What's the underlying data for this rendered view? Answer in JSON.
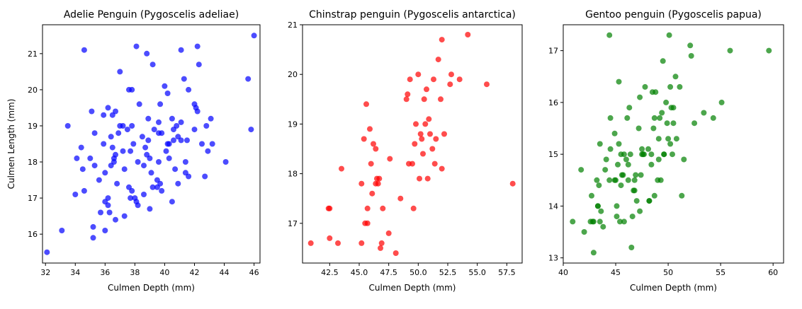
{
  "chart_data": [
    {
      "type": "scatter",
      "title": "Adelie Penguin (Pygoscelis adeliae)",
      "xlabel": "Culmen Depth (mm)",
      "ylabel": "Culmen Length (mm)",
      "xlim": [
        31.8,
        46.4
      ],
      "ylim": [
        15.2,
        21.8
      ],
      "xticks": [
        32,
        34,
        36,
        38,
        40,
        42,
        44,
        46
      ],
      "yticks": [
        16,
        17,
        18,
        19,
        20,
        21
      ],
      "color": "#0000ff",
      "grid": false,
      "series": [
        {
          "x": [
            32.1,
            33.1,
            33.5,
            34.0,
            34.1,
            34.4,
            34.6,
            34.6,
            35.1,
            35.2,
            35.2,
            35.3,
            35.6,
            35.7,
            35.9,
            36.0,
            36.0,
            36.2,
            36.2,
            36.3,
            36.4,
            36.5,
            36.6,
            36.7,
            36.7,
            36.8,
            37.0,
            37.2,
            37.3,
            37.5,
            37.6,
            37.7,
            37.8,
            37.8,
            37.9,
            38.1,
            38.2,
            38.3,
            38.5,
            38.6,
            38.6,
            38.8,
            38.9,
            39.0,
            39.0,
            39.2,
            39.3,
            39.5,
            39.6,
            39.6,
            39.7,
            39.8,
            39.8,
            40.0,
            40.1,
            40.2,
            40.3,
            40.5,
            40.6,
            40.7,
            40.8,
            40.9,
            41.1,
            41.1,
            41.3,
            41.4,
            41.5,
            41.6,
            42.0,
            42.1,
            42.2,
            42.3,
            42.5,
            42.7,
            42.8,
            42.9,
            43.1,
            43.2,
            44.1,
            45.6,
            45.8,
            46.0,
            37.7,
            39.1,
            37.2,
            38.8,
            36.4,
            35.9,
            40.2,
            36.6,
            38.1,
            41.1,
            37.6,
            40.6,
            36.5,
            39.7,
            37.3,
            35.3,
            42.0,
            36.9,
            39.5,
            38.9,
            34.5,
            40.3,
            36.2,
            38.7,
            41.4,
            37.0,
            35.0,
            39.2,
            40.9,
            36.0,
            42.2,
            38.2,
            37.8,
            39.6,
            41.6,
            36.7,
            38.0,
            40.5
          ],
          "y": [
            15.5,
            16.1,
            19.0,
            17.1,
            18.1,
            18.4,
            21.1,
            17.2,
            19.4,
            15.9,
            16.2,
            18.8,
            17.5,
            16.6,
            18.5,
            17.7,
            16.1,
            19.5,
            17.0,
            16.6,
            18.7,
            19.3,
            18.1,
            19.4,
            16.4,
            17.4,
            20.5,
            18.3,
            16.5,
            18.9,
            20.0,
            17.0,
            19.0,
            20.0,
            18.5,
            21.2,
            16.8,
            19.6,
            18.7,
            17.1,
            17.9,
            21.0,
            18.6,
            18.1,
            16.7,
            20.7,
            18.9,
            17.5,
            18.0,
            19.1,
            17.4,
            18.8,
            17.2,
            20.1,
            18.3,
            19.9,
            18.5,
            16.9,
            18.9,
            17.8,
            19.0,
            17.4,
            21.1,
            18.6,
            20.3,
            18.0,
            18.6,
            20.0,
            18.9,
            19.5,
            21.2,
            20.7,
            18.5,
            17.6,
            19.0,
            18.3,
            19.2,
            18.5,
            18.0,
            20.3,
            18.9,
            21.5,
            18.3,
            17.7,
            19.0,
            18.2,
            17.9,
            19.3,
            18.5,
            18.0,
            16.9,
            19.1,
            17.3,
            18.6,
            18.4,
            19.6,
            17.8,
            17.9,
            19.6,
            18.8,
            17.3,
            19.2,
            17.8,
            18.1,
            16.8,
            18.4,
            17.7,
            19.0,
            18.1,
            17.3,
            18.7,
            16.9,
            19.4,
            18.0,
            17.2,
            18.8,
            17.6,
            18.2,
            17.0,
            19.2
          ]
        }
      ]
    },
    {
      "type": "scatter",
      "title": "Chinstrap penguin (Pygoscelis antarctica)",
      "xlabel": "Culmen Depth (mm)",
      "ylabel": "",
      "xlim": [
        40.2,
        58.8
      ],
      "ylim": [
        16.2,
        21.0
      ],
      "xticks": [
        42.5,
        45.0,
        47.5,
        50.0,
        52.5,
        55.0,
        57.5
      ],
      "xtick_labels": [
        "42.5",
        "45.0",
        "47.5",
        "50.0",
        "52.5",
        "55.0",
        "57.5"
      ],
      "yticks": [
        17,
        18,
        19,
        20,
        21
      ],
      "color": "#ff0000",
      "grid": false,
      "series": [
        {
          "x": [
            40.9,
            42.4,
            42.5,
            42.5,
            43.2,
            43.5,
            45.2,
            45.2,
            45.4,
            45.5,
            45.6,
            45.7,
            45.7,
            45.9,
            46.0,
            46.1,
            46.2,
            46.4,
            46.4,
            46.5,
            46.6,
            46.7,
            46.8,
            46.9,
            47.0,
            47.5,
            47.6,
            48.1,
            48.5,
            49.0,
            49.1,
            49.2,
            49.3,
            49.5,
            49.6,
            49.7,
            49.8,
            50.0,
            50.1,
            50.2,
            50.3,
            50.4,
            50.5,
            50.6,
            50.7,
            50.8,
            50.9,
            51.0,
            51.2,
            51.3,
            51.4,
            51.5,
            51.7,
            51.9,
            52.0,
            52.0,
            52.2,
            52.7,
            52.8,
            53.5,
            54.2,
            55.8,
            58.0
          ],
          "y": [
            16.6,
            17.3,
            17.3,
            16.7,
            16.6,
            18.1,
            16.6,
            17.8,
            18.7,
            17.0,
            19.4,
            17.3,
            17.0,
            18.9,
            18.2,
            17.6,
            18.6,
            18.5,
            17.8,
            17.9,
            17.8,
            17.9,
            16.5,
            16.6,
            17.3,
            16.8,
            18.3,
            16.4,
            17.5,
            19.5,
            19.6,
            18.2,
            19.9,
            18.2,
            17.3,
            18.6,
            19.0,
            20.0,
            17.9,
            18.8,
            18.7,
            18.4,
            19.5,
            19.0,
            19.7,
            17.9,
            19.1,
            18.8,
            18.5,
            19.9,
            18.2,
            18.7,
            20.3,
            19.5,
            18.1,
            20.7,
            18.8,
            19.8,
            20.0,
            19.9,
            20.8,
            19.8,
            17.8
          ]
        }
      ]
    },
    {
      "type": "scatter",
      "title": "Gentoo penguin (Pygoscelis papua)",
      "xlabel": "Culmen Depth (mm)",
      "ylabel": "",
      "xlim": [
        40,
        61
      ],
      "ylim": [
        12.9,
        17.5
      ],
      "xticks": [
        40,
        45,
        50,
        55,
        60
      ],
      "yticks": [
        13,
        14,
        15,
        16,
        17
      ],
      "color": "#008000",
      "grid": false,
      "series": [
        {
          "x": [
            40.9,
            41.7,
            42.0,
            42.6,
            42.7,
            42.8,
            42.9,
            43.2,
            43.3,
            43.4,
            43.5,
            43.6,
            43.8,
            44.0,
            44.4,
            44.5,
            44.9,
            45.0,
            45.1,
            45.2,
            45.3,
            45.4,
            45.5,
            45.7,
            45.8,
            46.1,
            46.2,
            46.4,
            46.5,
            46.8,
            46.9,
            47.2,
            47.3,
            47.4,
            47.5,
            47.7,
            48.1,
            48.2,
            48.4,
            48.5,
            48.7,
            48.8,
            49.0,
            49.1,
            49.2,
            49.4,
            49.5,
            49.6,
            49.8,
            50.0,
            50.1,
            50.2,
            50.4,
            50.5,
            50.7,
            50.8,
            51.1,
            51.3,
            52.1,
            52.2,
            52.5,
            53.4,
            54.3,
            55.1,
            55.9,
            59.6,
            44.4,
            45.1,
            46.3,
            47.8,
            48.4,
            49.3,
            50.5,
            45.5,
            44.9,
            46.6,
            47.6,
            48.2,
            49.9,
            46.0,
            43.3,
            45.3,
            47.0,
            48.6,
            50.3,
            45.8,
            46.7,
            43.5,
            47.5,
            49.1,
            48.7,
            46.2,
            44.5,
            42.9,
            50.2,
            45.6,
            47.3,
            49.6,
            44.1,
            46.8,
            51.5
          ],
          "y": [
            13.7,
            14.7,
            13.5,
            13.7,
            14.2,
            13.7,
            13.1,
            14.5,
            14.0,
            14.4,
            15.2,
            13.9,
            13.6,
            14.7,
            17.3,
            15.7,
            15.4,
            14.5,
            13.8,
            14.8,
            16.4,
            13.7,
            15.0,
            14.6,
            13.7,
            15.7,
            14.5,
            15.0,
            13.2,
            14.3,
            14.6,
            15.5,
            16.1,
            14.6,
            15.0,
            15.0,
            15.1,
            14.1,
            14.8,
            16.2,
            15.7,
            16.2,
            14.5,
            14.9,
            15.7,
            15.8,
            16.8,
            15.0,
            16.0,
            15.3,
            17.3,
            15.2,
            15.0,
            15.9,
            16.5,
            15.3,
            16.3,
            14.2,
            17.1,
            16.9,
            15.6,
            15.8,
            15.7,
            16.0,
            17.0,
            17.0,
            14.5,
            14.0,
            15.9,
            16.3,
            15.0,
            14.5,
            15.6,
            14.4,
            14.5,
            13.8,
            15.0,
            14.1,
            15.6,
            14.9,
            14.0,
            15.2,
            14.1,
            15.5,
            15.9,
            15.0,
            14.3,
            13.7,
            15.1,
            15.3,
            14.2,
            14.8,
            15.1,
            13.7,
            16.3,
            14.6,
            13.9,
            15.0,
            14.9,
            14.5,
            14.9
          ]
        }
      ]
    }
  ]
}
